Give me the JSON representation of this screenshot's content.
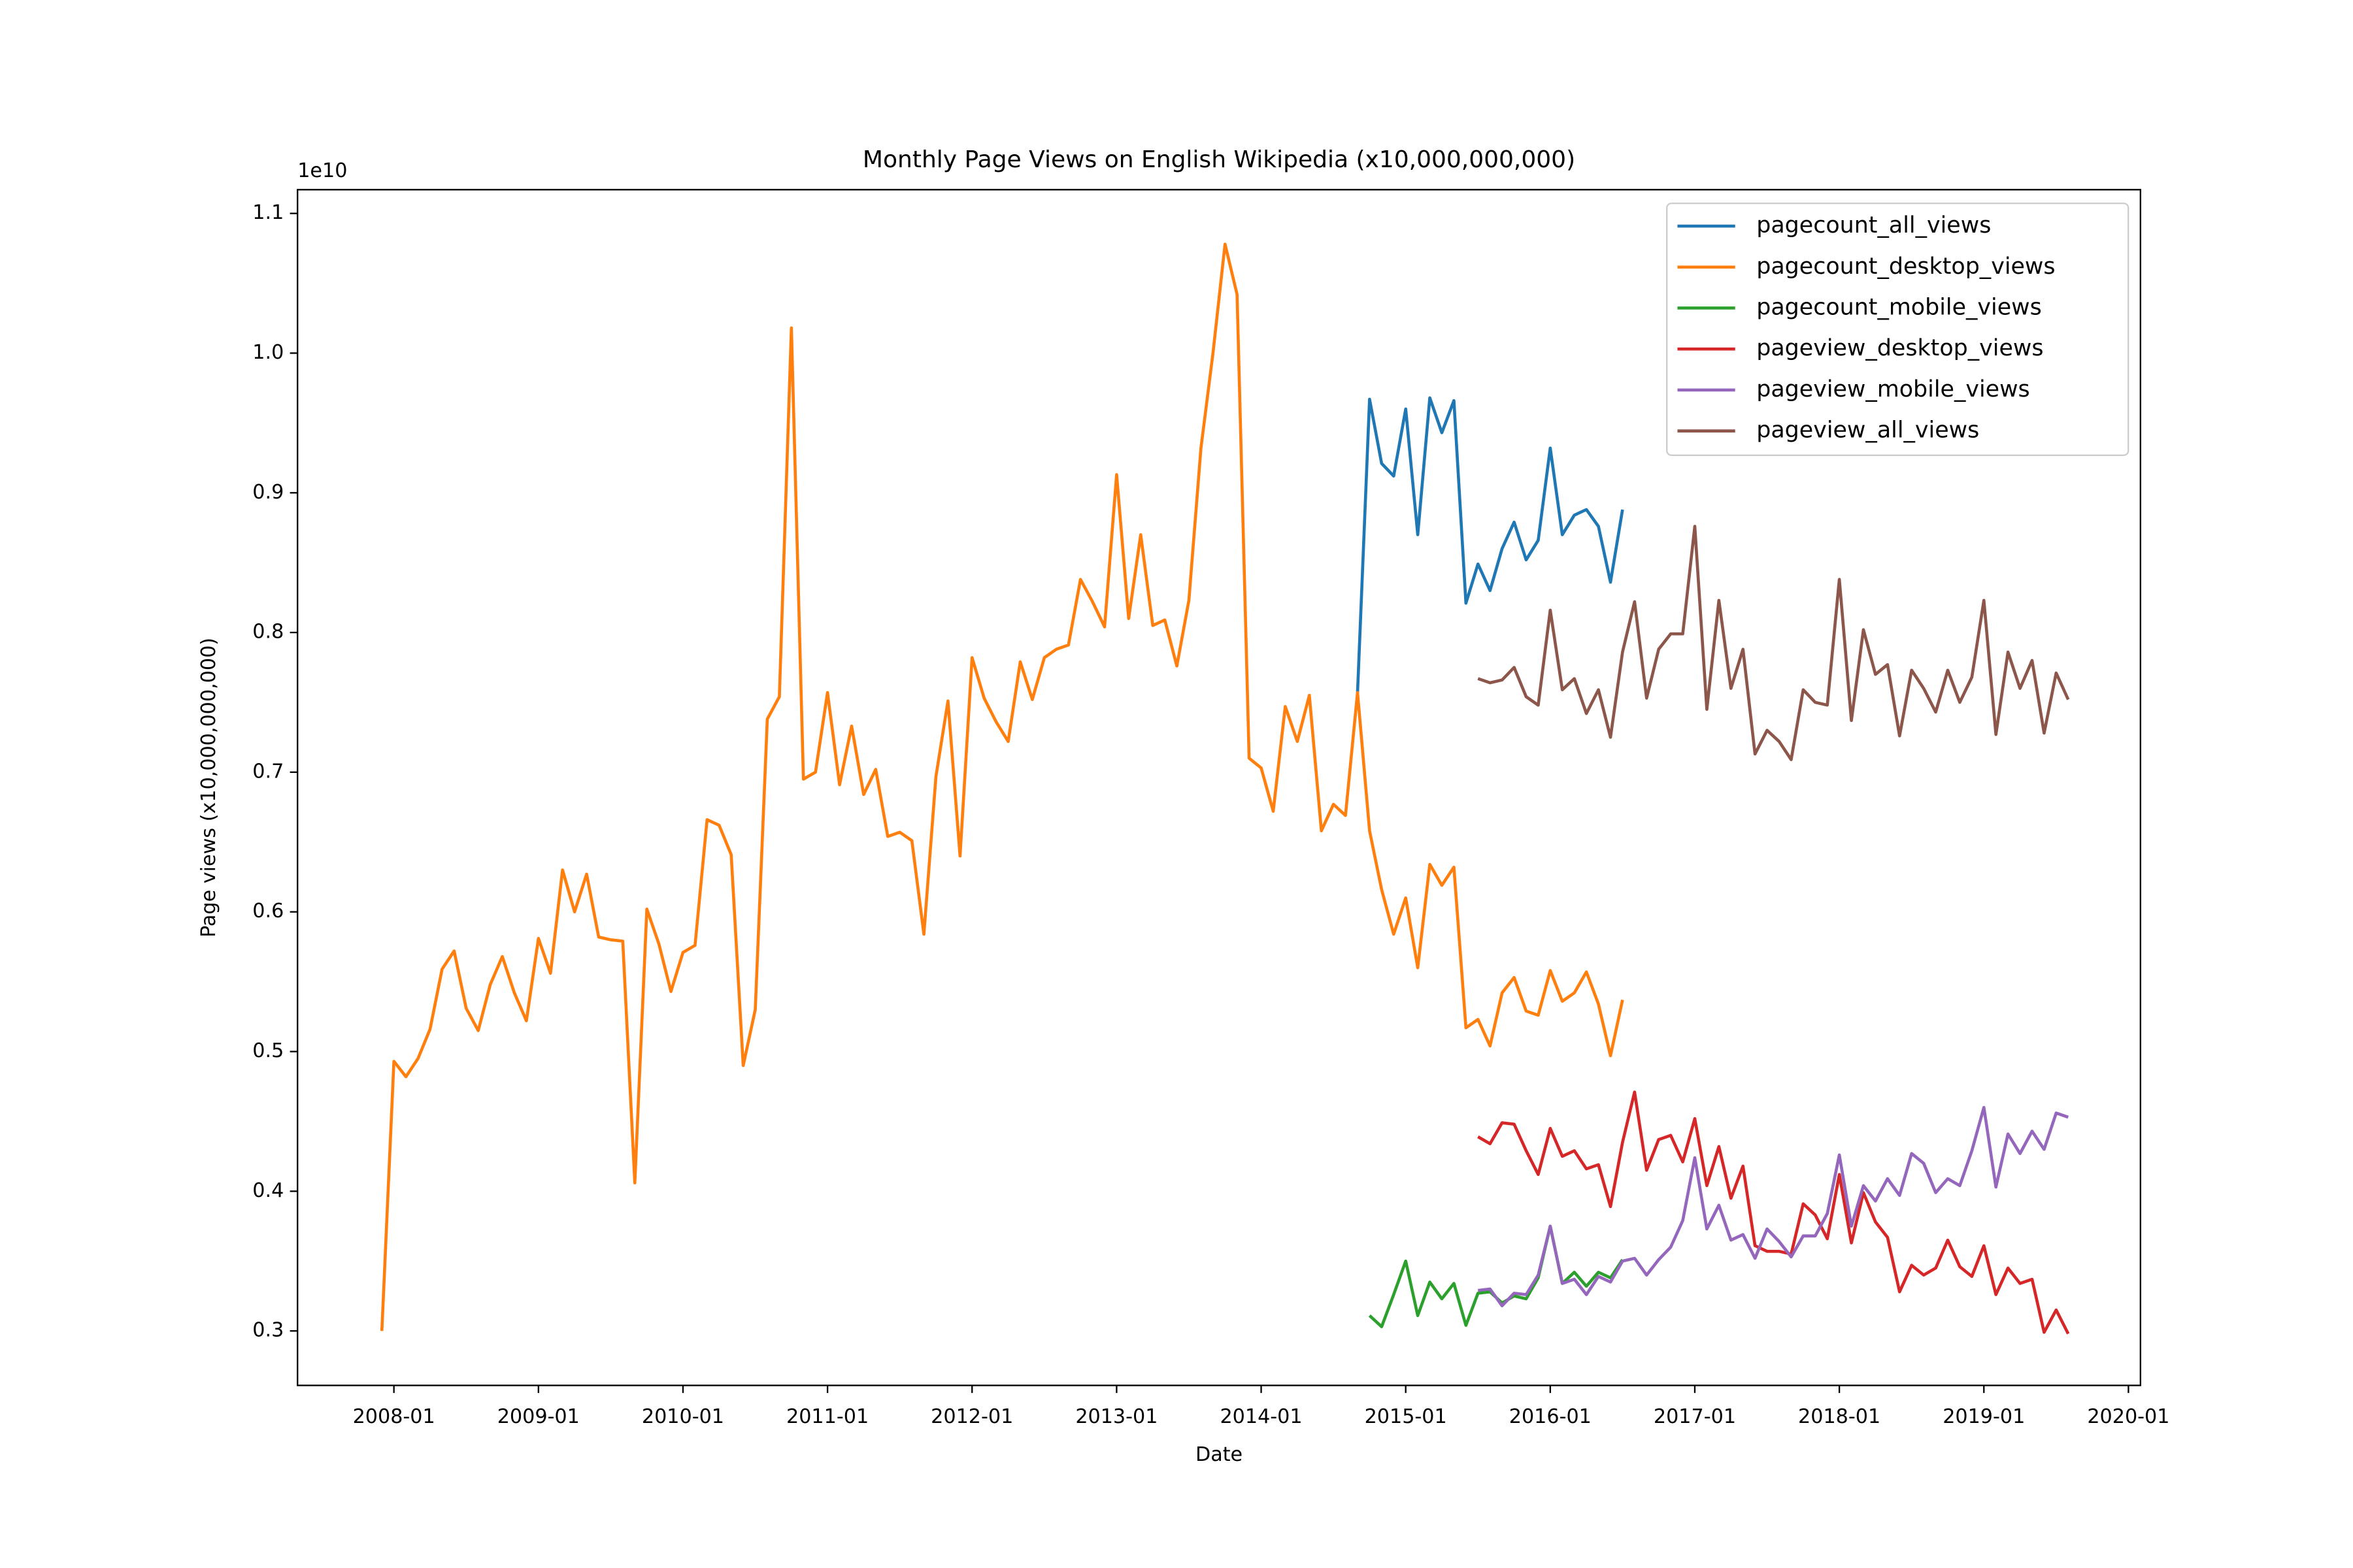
{
  "chart_data": {
    "type": "line",
    "title": "Monthly Page Views on English Wikipedia (x10,000,000,000)",
    "xlabel": "Date",
    "ylabel": "Page views (x10,000,000,000)",
    "y_offset_label": "1e10",
    "legend": "upper right",
    "grid": false,
    "x": [
      "2007-12",
      "2008-01",
      "2008-02",
      "2008-03",
      "2008-04",
      "2008-05",
      "2008-06",
      "2008-07",
      "2008-08",
      "2008-09",
      "2008-10",
      "2008-11",
      "2008-12",
      "2009-01",
      "2009-02",
      "2009-03",
      "2009-04",
      "2009-05",
      "2009-06",
      "2009-07",
      "2009-08",
      "2009-09",
      "2009-10",
      "2009-11",
      "2009-12",
      "2010-01",
      "2010-02",
      "2010-03",
      "2010-04",
      "2010-05",
      "2010-06",
      "2010-07",
      "2010-08",
      "2010-09",
      "2010-10",
      "2010-11",
      "2010-12",
      "2011-01",
      "2011-02",
      "2011-03",
      "2011-04",
      "2011-05",
      "2011-06",
      "2011-07",
      "2011-08",
      "2011-09",
      "2011-10",
      "2011-11",
      "2011-12",
      "2012-01",
      "2012-02",
      "2012-03",
      "2012-04",
      "2012-05",
      "2012-06",
      "2012-07",
      "2012-08",
      "2012-09",
      "2012-10",
      "2012-11",
      "2012-12",
      "2013-01",
      "2013-02",
      "2013-03",
      "2013-04",
      "2013-05",
      "2013-06",
      "2013-07",
      "2013-08",
      "2013-09",
      "2013-10",
      "2013-11",
      "2013-12",
      "2014-01",
      "2014-02",
      "2014-03",
      "2014-04",
      "2014-05",
      "2014-06",
      "2014-07",
      "2014-08",
      "2014-09",
      "2014-10",
      "2014-11",
      "2014-12",
      "2015-01",
      "2015-02",
      "2015-03",
      "2015-04",
      "2015-05",
      "2015-06",
      "2015-07",
      "2015-08",
      "2015-09",
      "2015-10",
      "2015-11",
      "2015-12",
      "2016-01",
      "2016-02",
      "2016-03",
      "2016-04",
      "2016-05",
      "2016-06",
      "2016-07",
      "2016-08",
      "2016-09",
      "2016-10",
      "2016-11",
      "2016-12",
      "2017-01",
      "2017-02",
      "2017-03",
      "2017-04",
      "2017-05",
      "2017-06",
      "2017-07",
      "2017-08",
      "2017-09",
      "2017-10",
      "2017-11",
      "2017-12",
      "2018-01",
      "2018-02",
      "2018-03",
      "2018-04",
      "2018-05",
      "2018-06",
      "2018-07",
      "2018-08",
      "2018-09",
      "2018-10",
      "2018-11",
      "2018-12",
      "2019-01",
      "2019-02",
      "2019-03",
      "2019-04",
      "2019-05",
      "2019-06",
      "2019-07",
      "2019-08"
    ],
    "xlim": [
      "2007-05",
      "2020-02"
    ],
    "xticks": [
      "2008-01",
      "2009-01",
      "2010-01",
      "2011-01",
      "2012-01",
      "2013-01",
      "2014-01",
      "2015-01",
      "2016-01",
      "2017-01",
      "2018-01",
      "2019-01",
      "2020-01"
    ],
    "ylim": [
      0.261,
      1.117
    ],
    "yticks": [
      0.3,
      0.4,
      0.5,
      0.6,
      0.7,
      0.8,
      0.9,
      {
        "value": 1,
        "label": "1.0"
      },
      1.1
    ],
    "series": [
      {
        "name": "pagecount_all_views",
        "color": "#1f77b4",
        "values": [
          null,
          null,
          null,
          null,
          null,
          null,
          null,
          null,
          null,
          null,
          null,
          null,
          null,
          null,
          null,
          null,
          null,
          null,
          null,
          null,
          null,
          null,
          null,
          null,
          null,
          null,
          null,
          null,
          null,
          null,
          null,
          null,
          null,
          null,
          null,
          null,
          null,
          null,
          null,
          null,
          null,
          null,
          null,
          null,
          null,
          null,
          null,
          null,
          null,
          null,
          null,
          null,
          null,
          null,
          null,
          null,
          null,
          null,
          null,
          null,
          null,
          null,
          null,
          null,
          null,
          null,
          null,
          null,
          null,
          null,
          null,
          null,
          null,
          null,
          null,
          null,
          null,
          null,
          null,
          null,
          null,
          0.757,
          0.967,
          0.921,
          0.912,
          0.96,
          0.87,
          0.968,
          0.943,
          0.966,
          0.821,
          0.849,
          0.83,
          0.86,
          0.879,
          0.852,
          0.866,
          0.932,
          0.87,
          0.884,
          0.888,
          0.876,
          0.836,
          0.888,
          null,
          null,
          null,
          null,
          null,
          null,
          null,
          null,
          null,
          null,
          null,
          null,
          null,
          null,
          null,
          null,
          null,
          null,
          null,
          null,
          null,
          null,
          null,
          null,
          null,
          null,
          null,
          null,
          null,
          null,
          null,
          null,
          null,
          null,
          null,
          null,
          null
        ]
      },
      {
        "name": "pagecount_desktop_views",
        "color": "#ff7f0e",
        "values": [
          0.3,
          0.493,
          0.482,
          0.495,
          0.516,
          0.559,
          0.572,
          0.531,
          0.515,
          0.548,
          0.568,
          0.542,
          0.522,
          0.581,
          0.556,
          0.63,
          0.6,
          0.627,
          0.582,
          0.58,
          0.579,
          0.406,
          0.602,
          0.577,
          0.543,
          0.571,
          0.576,
          0.666,
          0.662,
          0.641,
          0.49,
          0.53,
          0.738,
          0.754,
          1.018,
          0.695,
          0.7,
          0.757,
          0.691,
          0.733,
          0.684,
          0.702,
          0.654,
          0.657,
          0.651,
          0.584,
          0.697,
          0.751,
          0.64,
          0.782,
          0.753,
          0.736,
          0.722,
          0.779,
          0.752,
          0.782,
          0.788,
          0.791,
          0.838,
          0.822,
          0.804,
          0.913,
          0.81,
          0.87,
          0.805,
          0.809,
          0.776,
          0.823,
          0.932,
          1.0,
          1.078,
          1.042,
          0.71,
          0.703,
          0.672,
          0.747,
          0.722,
          0.755,
          0.658,
          0.677,
          0.669,
          0.757,
          0.658,
          0.616,
          0.584,
          0.61,
          0.56,
          0.634,
          0.619,
          0.632,
          0.517,
          0.523,
          0.504,
          0.542,
          0.553,
          0.529,
          0.526,
          0.558,
          0.536,
          0.542,
          0.557,
          0.534,
          0.497,
          0.537,
          null,
          null,
          null,
          null,
          null,
          null,
          null,
          null,
          null,
          null,
          null,
          null,
          null,
          null,
          null,
          null,
          null,
          null,
          null,
          null,
          null,
          null,
          null,
          null,
          null,
          null,
          null,
          null,
          null,
          null,
          null,
          null,
          null,
          null,
          null,
          null,
          null
        ]
      },
      {
        "name": "pagecount_mobile_views",
        "color": "#2ca02c",
        "values": [
          null,
          null,
          null,
          null,
          null,
          null,
          null,
          null,
          null,
          null,
          null,
          null,
          null,
          null,
          null,
          null,
          null,
          null,
          null,
          null,
          null,
          null,
          null,
          null,
          null,
          null,
          null,
          null,
          null,
          null,
          null,
          null,
          null,
          null,
          null,
          null,
          null,
          null,
          null,
          null,
          null,
          null,
          null,
          null,
          null,
          null,
          null,
          null,
          null,
          null,
          null,
          null,
          null,
          null,
          null,
          null,
          null,
          null,
          null,
          null,
          null,
          null,
          null,
          null,
          null,
          null,
          null,
          null,
          null,
          null,
          null,
          null,
          null,
          null,
          null,
          null,
          null,
          null,
          null,
          null,
          null,
          null,
          0.311,
          0.303,
          0.326,
          0.35,
          0.311,
          0.335,
          0.323,
          0.334,
          0.304,
          0.327,
          0.328,
          0.32,
          0.325,
          0.323,
          0.338,
          0.375,
          0.334,
          0.342,
          0.332,
          0.342,
          0.338,
          0.351,
          null,
          null,
          null,
          null,
          null,
          null,
          null,
          null,
          null,
          null,
          null,
          null,
          null,
          null,
          null,
          null,
          null,
          null,
          null,
          null,
          null,
          null,
          null,
          null,
          null,
          null,
          null,
          null,
          null,
          null,
          null,
          null,
          null,
          null,
          null,
          null,
          null
        ]
      },
      {
        "name": "pageview_desktop_views",
        "color": "#d62728",
        "values": [
          null,
          null,
          null,
          null,
          null,
          null,
          null,
          null,
          null,
          null,
          null,
          null,
          null,
          null,
          null,
          null,
          null,
          null,
          null,
          null,
          null,
          null,
          null,
          null,
          null,
          null,
          null,
          null,
          null,
          null,
          null,
          null,
          null,
          null,
          null,
          null,
          null,
          null,
          null,
          null,
          null,
          null,
          null,
          null,
          null,
          null,
          null,
          null,
          null,
          null,
          null,
          null,
          null,
          null,
          null,
          null,
          null,
          null,
          null,
          null,
          null,
          null,
          null,
          null,
          null,
          null,
          null,
          null,
          null,
          null,
          null,
          null,
          null,
          null,
          null,
          null,
          null,
          null,
          null,
          null,
          null,
          null,
          null,
          null,
          null,
          null,
          null,
          null,
          null,
          null,
          null,
          0.439,
          0.434,
          0.449,
          0.448,
          0.429,
          0.412,
          0.445,
          0.425,
          0.429,
          0.416,
          0.419,
          0.389,
          0.435,
          0.471,
          0.415,
          0.437,
          0.44,
          0.421,
          0.452,
          0.404,
          0.432,
          0.395,
          0.418,
          0.361,
          0.357,
          0.357,
          0.355,
          0.391,
          0.383,
          0.366,
          0.412,
          0.363,
          0.399,
          0.378,
          0.367,
          0.328,
          0.347,
          0.34,
          0.345,
          0.365,
          0.346,
          0.339,
          0.361,
          0.326,
          0.345,
          0.334,
          0.337,
          0.299,
          0.315,
          0.298
        ]
      },
      {
        "name": "pageview_mobile_views",
        "color": "#9467bd",
        "values": [
          null,
          null,
          null,
          null,
          null,
          null,
          null,
          null,
          null,
          null,
          null,
          null,
          null,
          null,
          null,
          null,
          null,
          null,
          null,
          null,
          null,
          null,
          null,
          null,
          null,
          null,
          null,
          null,
          null,
          null,
          null,
          null,
          null,
          null,
          null,
          null,
          null,
          null,
          null,
          null,
          null,
          null,
          null,
          null,
          null,
          null,
          null,
          null,
          null,
          null,
          null,
          null,
          null,
          null,
          null,
          null,
          null,
          null,
          null,
          null,
          null,
          null,
          null,
          null,
          null,
          null,
          null,
          null,
          null,
          null,
          null,
          null,
          null,
          null,
          null,
          null,
          null,
          null,
          null,
          null,
          null,
          null,
          null,
          null,
          null,
          null,
          null,
          null,
          null,
          null,
          null,
          0.329,
          0.33,
          0.318,
          0.327,
          0.326,
          0.34,
          0.375,
          0.334,
          0.337,
          0.326,
          0.339,
          0.335,
          0.35,
          0.352,
          0.34,
          0.351,
          0.36,
          0.379,
          0.424,
          0.373,
          0.39,
          0.365,
          0.369,
          0.352,
          0.373,
          0.364,
          0.353,
          0.368,
          0.368,
          0.384,
          0.426,
          0.375,
          0.404,
          0.393,
          0.409,
          0.397,
          0.427,
          0.42,
          0.399,
          0.409,
          0.404,
          0.429,
          0.46,
          0.403,
          0.441,
          0.427,
          0.443,
          0.43,
          0.456,
          0.453
        ]
      },
      {
        "name": "pageview_all_views",
        "color": "#8c564b",
        "values": [
          null,
          null,
          null,
          null,
          null,
          null,
          null,
          null,
          null,
          null,
          null,
          null,
          null,
          null,
          null,
          null,
          null,
          null,
          null,
          null,
          null,
          null,
          null,
          null,
          null,
          null,
          null,
          null,
          null,
          null,
          null,
          null,
          null,
          null,
          null,
          null,
          null,
          null,
          null,
          null,
          null,
          null,
          null,
          null,
          null,
          null,
          null,
          null,
          null,
          null,
          null,
          null,
          null,
          null,
          null,
          null,
          null,
          null,
          null,
          null,
          null,
          null,
          null,
          null,
          null,
          null,
          null,
          null,
          null,
          null,
          null,
          null,
          null,
          null,
          null,
          null,
          null,
          null,
          null,
          null,
          null,
          null,
          null,
          null,
          null,
          null,
          null,
          null,
          null,
          null,
          null,
          0.767,
          0.764,
          0.766,
          0.775,
          0.754,
          0.748,
          0.816,
          0.759,
          0.767,
          0.742,
          0.759,
          0.725,
          0.786,
          0.822,
          0.753,
          0.788,
          0.799,
          0.799,
          0.876,
          0.745,
          0.823,
          0.76,
          0.788,
          0.713,
          0.73,
          0.722,
          0.709,
          0.759,
          0.75,
          0.748,
          0.838,
          0.737,
          0.802,
          0.77,
          0.777,
          0.726,
          0.773,
          0.76,
          0.743,
          0.773,
          0.75,
          0.768,
          0.823,
          0.727,
          0.786,
          0.76,
          0.78,
          0.728,
          0.771,
          0.752
        ]
      }
    ]
  }
}
